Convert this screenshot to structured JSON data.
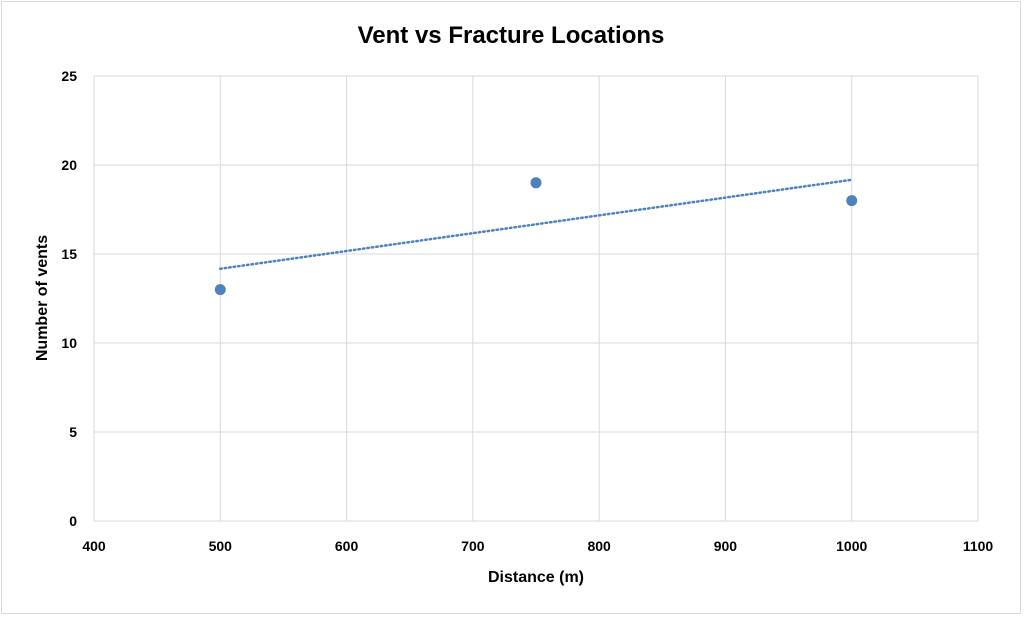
{
  "chart_data": {
    "type": "scatter",
    "title": "Vent vs Fracture Locations",
    "xlabel": "Distance (m)",
    "ylabel": "Number of vents",
    "xlim": [
      400,
      1100
    ],
    "ylim": [
      0,
      25
    ],
    "xticks": [
      "400",
      "500",
      "600",
      "700",
      "800",
      "900",
      "1000",
      "1100"
    ],
    "yticks": [
      "0",
      "5",
      "10",
      "15",
      "20",
      "25"
    ],
    "grid": true,
    "series": [
      {
        "x": [
          500,
          750,
          1000
        ],
        "y": [
          13,
          19,
          18
        ],
        "color": "#4f81bd"
      }
    ],
    "trendline": {
      "kind": "linear",
      "style": "dotted",
      "color": "#4f81bd",
      "x": [
        500,
        1000
      ],
      "y": [
        14.17,
        19.17
      ]
    }
  }
}
